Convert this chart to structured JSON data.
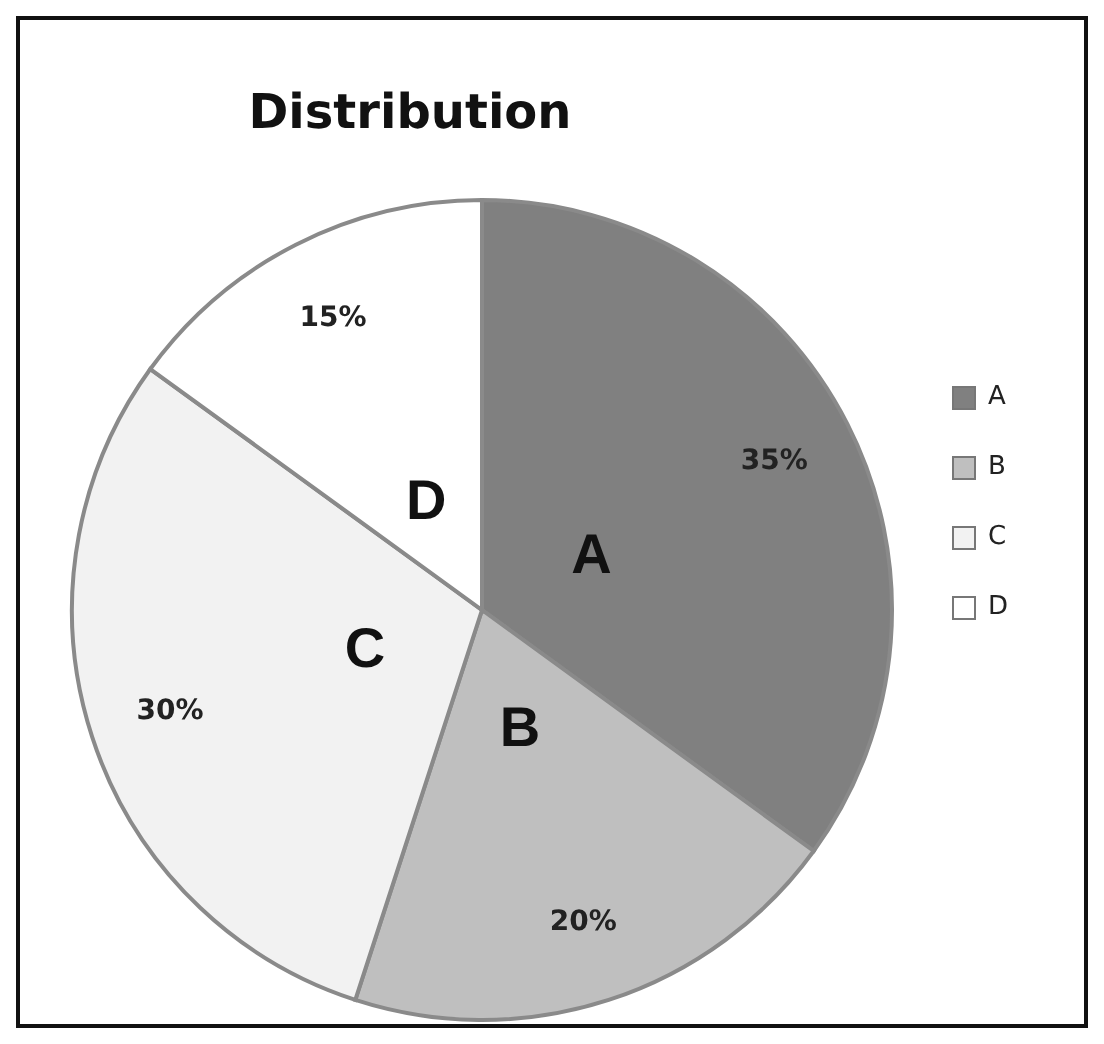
{
  "chart_data": {
    "type": "pie",
    "title": "Distribution",
    "categories": [
      "A",
      "B",
      "C",
      "D"
    ],
    "values": [
      35,
      20,
      30,
      15
    ],
    "value_labels": [
      "35%",
      "20%",
      "30%",
      "15%"
    ],
    "colors": [
      "#808080",
      "#bfbfbf",
      "#f2f2f2",
      "#ffffff"
    ],
    "legend": "right"
  }
}
